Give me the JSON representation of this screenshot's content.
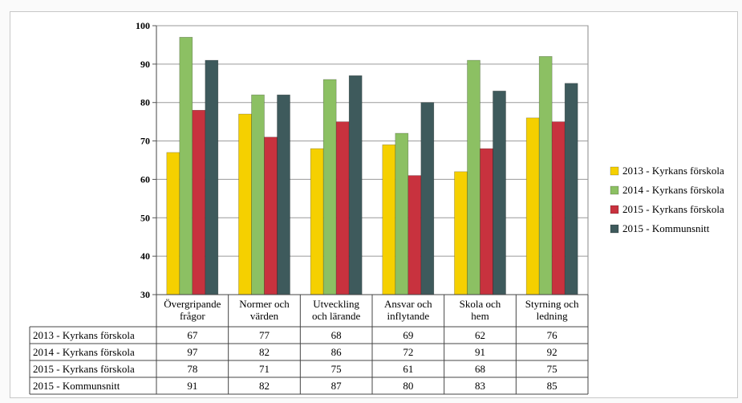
{
  "chart_data": {
    "type": "bar",
    "title": "",
    "xlabel": "",
    "ylabel": "",
    "ylim": [
      30,
      100
    ],
    "yticks": [
      30,
      40,
      50,
      60,
      70,
      80,
      90,
      100
    ],
    "grid": true,
    "legend_position": "right",
    "categories": [
      [
        "Övergripande",
        "frågor"
      ],
      [
        "Normer och",
        "värden"
      ],
      [
        "Utveckling",
        "och lärande"
      ],
      [
        "Ansvar och",
        "inflytande"
      ],
      [
        "Skola och",
        "hem"
      ],
      [
        "Styrning och",
        "ledning"
      ]
    ],
    "series": [
      {
        "name": "2013 - Kyrkans förskola",
        "color": "#f5d000",
        "values": [
          67,
          77,
          68,
          69,
          62,
          76
        ]
      },
      {
        "name": "2014 - Kyrkans förskola",
        "color": "#8cc063",
        "values": [
          97,
          82,
          86,
          72,
          91,
          92
        ]
      },
      {
        "name": "2015 - Kyrkans förskola",
        "color": "#c8323e",
        "values": [
          78,
          71,
          75,
          61,
          68,
          75
        ]
      },
      {
        "name": "2015 - Kommunsnitt",
        "color": "#3e5a5c",
        "values": [
          91,
          82,
          87,
          80,
          83,
          85
        ]
      }
    ]
  }
}
